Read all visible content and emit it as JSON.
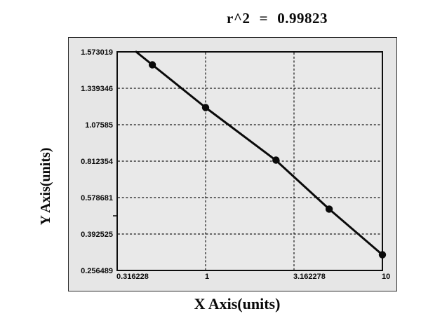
{
  "title": "r^2 = 0.99823",
  "colors": {
    "panel_bg": "#e6e6e6",
    "plot_bg": "#e9e9e9",
    "panel_border": "#2e2e2e",
    "axis": "#0d0d0d",
    "grid": "#161616",
    "ink": "#0a0a0a"
  },
  "chart_data": {
    "type": "scatter",
    "title": "r^2 = 0.99823",
    "r_squared": 0.99823,
    "xlabel": "X Axis(units)",
    "ylabel": "Y Axis(units)",
    "x_scale": "log",
    "xlim": [
      0.316228,
      10
    ],
    "x_ticks": [
      0.316228,
      1,
      3.162278,
      10
    ],
    "x_tick_labels": [
      "0.316228",
      "1",
      "3.162278",
      "10"
    ],
    "y_ticks": [
      1.573019,
      1.339346,
      1.07585,
      0.812354,
      0.578681,
      0.392525,
      0.256489
    ],
    "y_tick_labels": [
      "1.573019",
      "1.339346",
      "1.07585",
      "0.812354",
      "0.578681",
      "0.392525",
      "0.256489"
    ],
    "grid": "dashed",
    "legend": "none",
    "series": [
      {
        "name": "fit-line",
        "type": "line",
        "x": [
          0.405,
          0.5,
          1,
          2.5,
          5,
          10
        ],
        "y": [
          1.573019,
          1.49,
          1.2,
          0.818,
          0.52,
          0.315
        ]
      },
      {
        "name": "standard-points",
        "type": "scatter",
        "marker": "filled-circle",
        "x": [
          0.5,
          1,
          2.5,
          5,
          10
        ],
        "y": [
          1.49,
          1.2,
          0.82,
          0.52,
          0.315
        ]
      }
    ]
  }
}
